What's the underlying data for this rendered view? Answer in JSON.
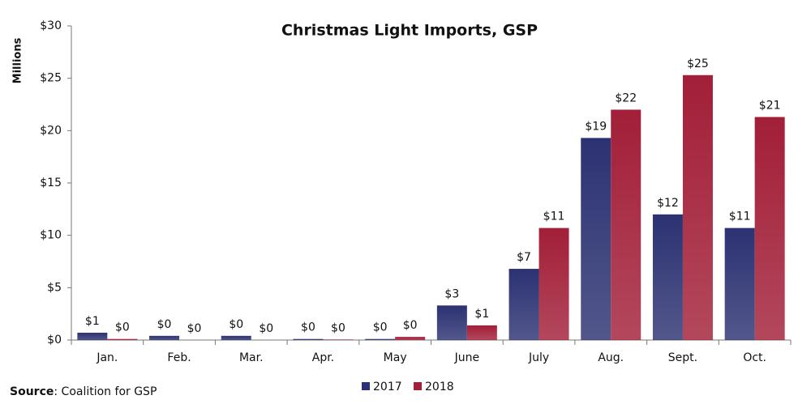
{
  "chart_data": {
    "type": "bar",
    "title": "Christmas Light Imports, GSP",
    "y_label": "Millions",
    "source_label": "Source",
    "source_text": ": Coalition for GSP",
    "categories": [
      "Jan.",
      "Feb.",
      "Mar.",
      "Apr.",
      "May",
      "June",
      "July",
      "Aug.",
      "Sept.",
      "Oct."
    ],
    "series": [
      {
        "name": "2017",
        "color": "#2c3272",
        "values": [
          0.7,
          0.4,
          0.4,
          0.1,
          0.1,
          3.3,
          6.8,
          19.3,
          12.0,
          10.7
        ],
        "value_labels": [
          "$1",
          "$0",
          "$0",
          "$0",
          "$0",
          "$3",
          "$7",
          "$19",
          "$12",
          "$11"
        ]
      },
      {
        "name": "2018",
        "color": "#a21f38",
        "values": [
          0.1,
          0.0,
          0.0,
          0.05,
          0.3,
          1.4,
          10.7,
          22.0,
          25.3,
          21.3
        ],
        "value_labels": [
          "$0",
          "$0",
          "$0",
          "$0",
          "$0",
          "$1",
          "$11",
          "$22",
          "$25",
          "$21"
        ]
      }
    ],
    "ylim": [
      0,
      30
    ],
    "yticks": [
      {
        "value": 0,
        "label": "$0"
      },
      {
        "value": 5,
        "label": "$5"
      },
      {
        "value": 10,
        "label": "$10"
      },
      {
        "value": 15,
        "label": "$15"
      },
      {
        "value": 20,
        "label": "$20"
      },
      {
        "value": 25,
        "label": "$25"
      },
      {
        "value": 30,
        "label": "$30"
      }
    ],
    "legend": "bottom"
  }
}
